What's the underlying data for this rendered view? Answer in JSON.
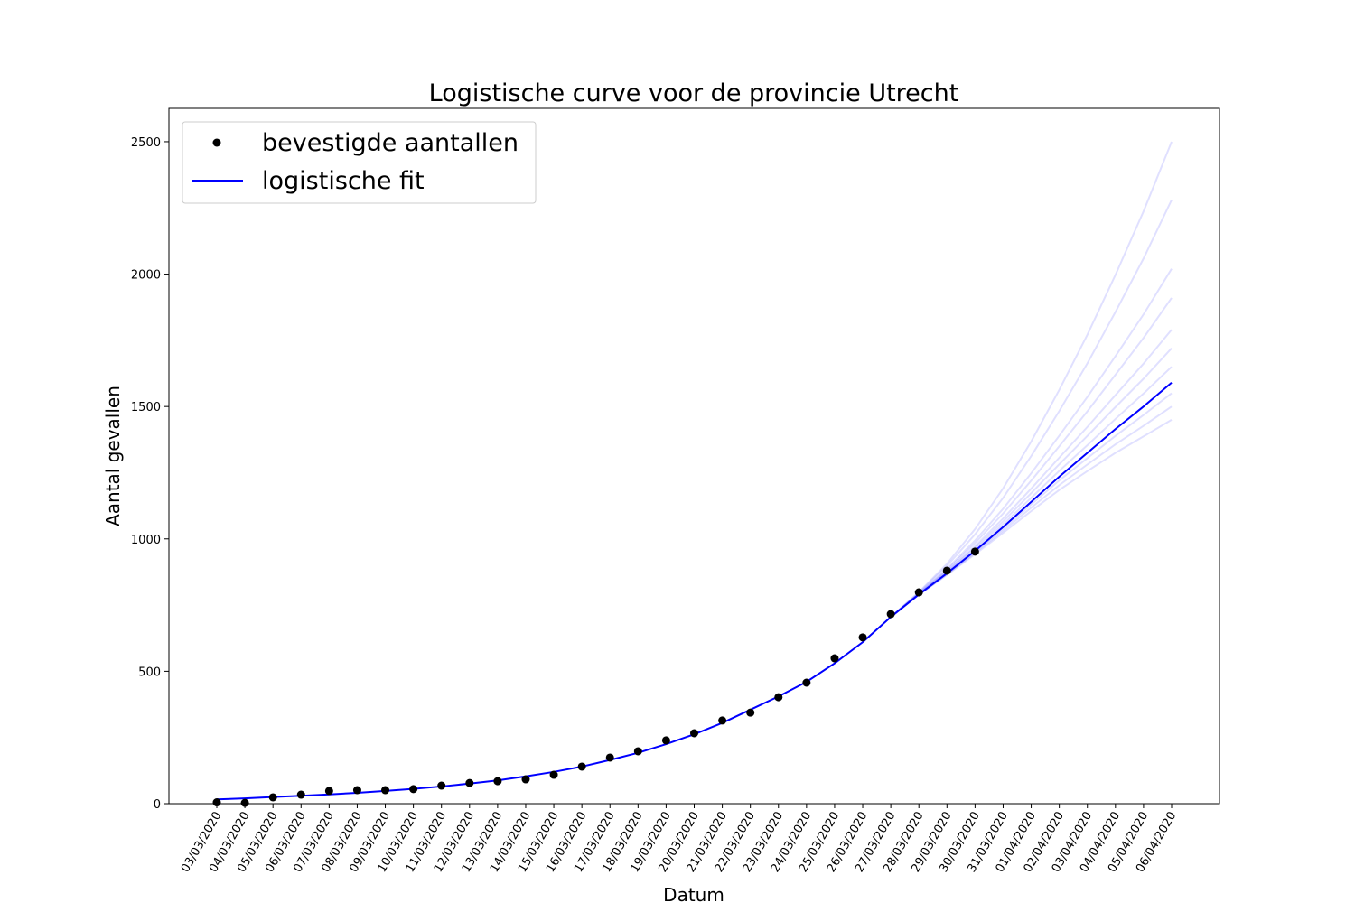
{
  "chart_data": {
    "type": "line",
    "title": "Logistische curve voor de provincie Utrecht",
    "xlabel": "Datum",
    "ylabel": "Aantal gevallen",
    "categories": [
      "03/03/2020",
      "04/03/2020",
      "05/03/2020",
      "06/03/2020",
      "07/03/2020",
      "08/03/2020",
      "09/03/2020",
      "10/03/2020",
      "11/03/2020",
      "12/03/2020",
      "13/03/2020",
      "14/03/2020",
      "15/03/2020",
      "16/03/2020",
      "17/03/2020",
      "18/03/2020",
      "19/03/2020",
      "20/03/2020",
      "21/03/2020",
      "22/03/2020",
      "23/03/2020",
      "24/03/2020",
      "25/03/2020",
      "26/03/2020",
      "27/03/2020",
      "28/03/2020",
      "29/03/2020",
      "30/03/2020",
      "31/03/2020",
      "01/04/2020",
      "02/04/2020",
      "03/04/2020",
      "04/04/2020",
      "05/04/2020",
      "06/04/2020"
    ],
    "series": [
      {
        "name": "bevestigde aantallen",
        "type": "scatter",
        "color": "#000000",
        "values": [
          5,
          3,
          24,
          34,
          48,
          51,
          51,
          55,
          68,
          78,
          85,
          92,
          109,
          140,
          174,
          198,
          239,
          266,
          314,
          344,
          402,
          457,
          549,
          628,
          716,
          798,
          880,
          952,
          null,
          null,
          null,
          null,
          null,
          null,
          null
        ]
      },
      {
        "name": "logistische fit",
        "type": "line",
        "color": "#0000ff",
        "values": [
          16,
          20,
          25,
          30,
          35,
          41,
          48,
          56,
          65,
          76,
          88,
          103,
          120,
          140,
          165,
          192,
          225,
          262,
          305,
          355,
          405,
          460,
          530,
          610,
          705,
          790,
          870,
          955,
          1045,
          1140,
          1235,
          1325,
          1415,
          1500,
          1590
        ]
      }
    ],
    "ensemble_color": "#0000ff",
    "ensemble": [
      [
        null,
        null,
        null,
        null,
        null,
        null,
        null,
        null,
        null,
        null,
        null,
        null,
        null,
        null,
        null,
        null,
        null,
        null,
        null,
        null,
        null,
        null,
        null,
        null,
        705,
        799,
        906,
        1037,
        1191,
        1368,
        1563,
        1771,
        1997,
        2237,
        2500
      ],
      [
        null,
        null,
        null,
        null,
        null,
        null,
        null,
        null,
        null,
        null,
        null,
        null,
        null,
        null,
        null,
        null,
        null,
        null,
        null,
        null,
        null,
        null,
        null,
        null,
        705,
        797,
        898,
        1017,
        1155,
        1313,
        1483,
        1663,
        1857,
        2059,
        2280
      ],
      [
        null,
        null,
        null,
        null,
        null,
        null,
        null,
        null,
        null,
        null,
        null,
        null,
        null,
        null,
        null,
        null,
        null,
        null,
        null,
        null,
        null,
        null,
        null,
        null,
        705,
        794,
        887,
        994,
        1114,
        1248,
        1390,
        1536,
        1690,
        1848,
        2020
      ],
      [
        null,
        null,
        null,
        null,
        null,
        null,
        null,
        null,
        null,
        null,
        null,
        null,
        null,
        null,
        null,
        null,
        null,
        null,
        null,
        null,
        null,
        null,
        null,
        null,
        705,
        793,
        883,
        984,
        1096,
        1220,
        1350,
        1482,
        1620,
        1759,
        1910
      ],
      [
        null,
        null,
        null,
        null,
        null,
        null,
        null,
        null,
        null,
        null,
        null,
        null,
        null,
        null,
        null,
        null,
        null,
        null,
        null,
        null,
        null,
        null,
        null,
        null,
        705,
        792,
        878,
        973,
        1077,
        1190,
        1307,
        1423,
        1543,
        1662,
        1790
      ],
      [
        null,
        null,
        null,
        null,
        null,
        null,
        null,
        null,
        null,
        null,
        null,
        null,
        null,
        null,
        null,
        null,
        null,
        null,
        null,
        null,
        null,
        null,
        null,
        null,
        705,
        791,
        875,
        967,
        1066,
        1173,
        1282,
        1389,
        1498,
        1605,
        1720
      ],
      [
        null,
        null,
        null,
        null,
        null,
        null,
        null,
        null,
        null,
        null,
        null,
        null,
        null,
        null,
        null,
        null,
        null,
        null,
        null,
        null,
        null,
        null,
        null,
        null,
        705,
        791,
        872,
        960,
        1055,
        1155,
        1257,
        1354,
        1453,
        1549,
        1650
      ],
      [
        null,
        null,
        null,
        null,
        null,
        null,
        null,
        null,
        null,
        null,
        null,
        null,
        null,
        null,
        null,
        null,
        null,
        null,
        null,
        null,
        null,
        null,
        null,
        null,
        705,
        790,
        868,
        951,
        1039,
        1130,
        1221,
        1305,
        1389,
        1468,
        1550
      ],
      [
        null,
        null,
        null,
        null,
        null,
        null,
        null,
        null,
        null,
        null,
        null,
        null,
        null,
        null,
        null,
        null,
        null,
        null,
        null,
        null,
        null,
        null,
        null,
        null,
        705,
        789,
        866,
        947,
        1031,
        1118,
        1203,
        1281,
        1357,
        1427,
        1500
      ],
      [
        null,
        null,
        null,
        null,
        null,
        null,
        null,
        null,
        null,
        null,
        null,
        null,
        null,
        null,
        null,
        null,
        null,
        null,
        null,
        null,
        null,
        null,
        null,
        null,
        705,
        789,
        864,
        942,
        1023,
        1105,
        1185,
        1256,
        1325,
        1387,
        1450
      ]
    ],
    "ylim": [
      0,
      2626
    ],
    "yticks": [
      0,
      500,
      1000,
      1500,
      2000,
      2500
    ],
    "legend": "upper left"
  }
}
